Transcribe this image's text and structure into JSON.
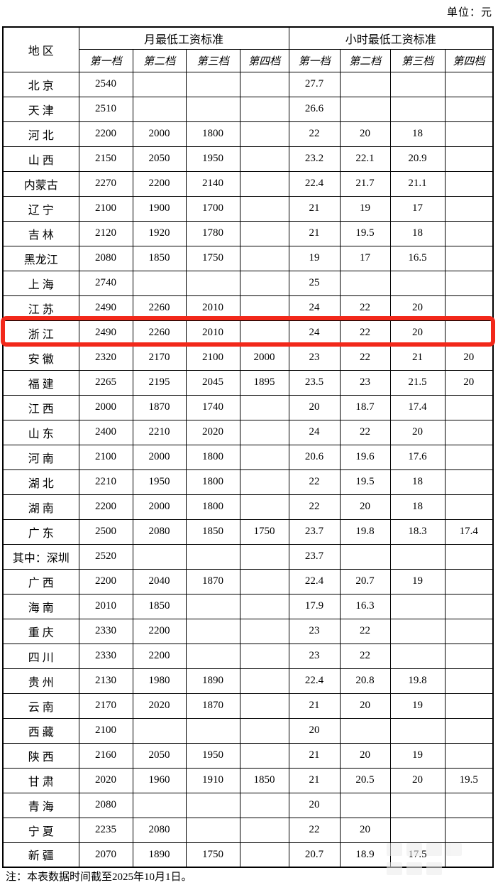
{
  "unit_label": "单位：元",
  "note": "注：本表数据时间截至2025年10月1日。",
  "highlight": {
    "color": "#f2281a",
    "region": "浙 江"
  },
  "table": {
    "region_header": "地 区",
    "monthly_header": "月最低工资标准",
    "hourly_header": "小时最低工资标准",
    "tier_headers": [
      "第一档",
      "第二档",
      "第三档",
      "第四档"
    ],
    "rows": [
      {
        "region": "北 京",
        "monthly": [
          "2540",
          "",
          "",
          ""
        ],
        "hourly": [
          "27.7",
          "",
          "",
          ""
        ]
      },
      {
        "region": "天 津",
        "monthly": [
          "2510",
          "",
          "",
          ""
        ],
        "hourly": [
          "26.6",
          "",
          "",
          ""
        ]
      },
      {
        "region": "河 北",
        "monthly": [
          "2200",
          "2000",
          "1800",
          ""
        ],
        "hourly": [
          "22",
          "20",
          "18",
          ""
        ]
      },
      {
        "region": "山 西",
        "monthly": [
          "2150",
          "2050",
          "1950",
          ""
        ],
        "hourly": [
          "23.2",
          "22.1",
          "20.9",
          ""
        ]
      },
      {
        "region": "内蒙古",
        "monthly": [
          "2270",
          "2200",
          "2140",
          ""
        ],
        "hourly": [
          "22.4",
          "21.7",
          "21.1",
          ""
        ]
      },
      {
        "region": "辽 宁",
        "monthly": [
          "2100",
          "1900",
          "1700",
          ""
        ],
        "hourly": [
          "21",
          "19",
          "17",
          ""
        ]
      },
      {
        "region": "吉 林",
        "monthly": [
          "2120",
          "1920",
          "1780",
          ""
        ],
        "hourly": [
          "21",
          "19.5",
          "18",
          ""
        ]
      },
      {
        "region": "黑龙江",
        "monthly": [
          "2080",
          "1850",
          "1750",
          ""
        ],
        "hourly": [
          "19",
          "17",
          "16.5",
          ""
        ]
      },
      {
        "region": "上 海",
        "monthly": [
          "2740",
          "",
          "",
          ""
        ],
        "hourly": [
          "25",
          "",
          "",
          ""
        ]
      },
      {
        "region": "江 苏",
        "monthly": [
          "2490",
          "2260",
          "2010",
          ""
        ],
        "hourly": [
          "24",
          "22",
          "20",
          ""
        ]
      },
      {
        "region": "浙 江",
        "monthly": [
          "2490",
          "2260",
          "2010",
          ""
        ],
        "hourly": [
          "24",
          "22",
          "20",
          ""
        ]
      },
      {
        "region": "安 徽",
        "monthly": [
          "2320",
          "2170",
          "2100",
          "2000"
        ],
        "hourly": [
          "23",
          "22",
          "21",
          "20"
        ]
      },
      {
        "region": "福 建",
        "monthly": [
          "2265",
          "2195",
          "2045",
          "1895"
        ],
        "hourly": [
          "23.5",
          "23",
          "21.5",
          "20"
        ]
      },
      {
        "region": "江 西",
        "monthly": [
          "2000",
          "1870",
          "1740",
          ""
        ],
        "hourly": [
          "20",
          "18.7",
          "17.4",
          ""
        ]
      },
      {
        "region": "山 东",
        "monthly": [
          "2400",
          "2210",
          "2020",
          ""
        ],
        "hourly": [
          "24",
          "22",
          "20",
          ""
        ]
      },
      {
        "region": "河 南",
        "monthly": [
          "2100",
          "2000",
          "1800",
          ""
        ],
        "hourly": [
          "20.6",
          "19.6",
          "17.6",
          ""
        ]
      },
      {
        "region": "湖 北",
        "monthly": [
          "2210",
          "1950",
          "1800",
          ""
        ],
        "hourly": [
          "22",
          "19.5",
          "18",
          ""
        ]
      },
      {
        "region": "湖 南",
        "monthly": [
          "2200",
          "2000",
          "1800",
          ""
        ],
        "hourly": [
          "22",
          "20",
          "18",
          ""
        ]
      },
      {
        "region": "广 东",
        "monthly": [
          "2500",
          "2080",
          "1850",
          "1750"
        ],
        "hourly": [
          "23.7",
          "19.8",
          "18.3",
          "17.4"
        ]
      },
      {
        "region": "其中：深圳",
        "monthly": [
          "2520",
          "",
          "",
          ""
        ],
        "hourly": [
          "23.7",
          "",
          "",
          ""
        ]
      },
      {
        "region": "广 西",
        "monthly": [
          "2200",
          "2040",
          "1870",
          ""
        ],
        "hourly": [
          "22.4",
          "20.7",
          "19",
          ""
        ]
      },
      {
        "region": "海 南",
        "monthly": [
          "2010",
          "1850",
          "",
          ""
        ],
        "hourly": [
          "17.9",
          "16.3",
          "",
          ""
        ]
      },
      {
        "region": "重 庆",
        "monthly": [
          "2330",
          "2200",
          "",
          ""
        ],
        "hourly": [
          "23",
          "22",
          "",
          ""
        ]
      },
      {
        "region": "四 川",
        "monthly": [
          "2330",
          "2200",
          "",
          ""
        ],
        "hourly": [
          "23",
          "22",
          "",
          ""
        ]
      },
      {
        "region": "贵 州",
        "monthly": [
          "2130",
          "1980",
          "1890",
          ""
        ],
        "hourly": [
          "22.4",
          "20.8",
          "19.8",
          ""
        ]
      },
      {
        "region": "云 南",
        "monthly": [
          "2170",
          "2020",
          "1870",
          ""
        ],
        "hourly": [
          "21",
          "20",
          "19",
          ""
        ]
      },
      {
        "region": "西 藏",
        "monthly": [
          "2100",
          "",
          "",
          ""
        ],
        "hourly": [
          "20",
          "",
          "",
          ""
        ]
      },
      {
        "region": "陕 西",
        "monthly": [
          "2160",
          "2050",
          "1950",
          ""
        ],
        "hourly": [
          "21",
          "20",
          "19",
          ""
        ]
      },
      {
        "region": "甘 肃",
        "monthly": [
          "2020",
          "1960",
          "1910",
          "1850"
        ],
        "hourly": [
          "21",
          "20.5",
          "20",
          "19.5"
        ]
      },
      {
        "region": "青 海",
        "monthly": [
          "2080",
          "",
          "",
          ""
        ],
        "hourly": [
          "20",
          "",
          "",
          ""
        ]
      },
      {
        "region": "宁 夏",
        "monthly": [
          "2235",
          "2080",
          "",
          ""
        ],
        "hourly": [
          "22",
          "20",
          "",
          ""
        ]
      },
      {
        "region": "新 疆",
        "monthly": [
          "2070",
          "1890",
          "1750",
          ""
        ],
        "hourly": [
          "20.7",
          "18.9",
          "17.5",
          ""
        ]
      }
    ]
  }
}
